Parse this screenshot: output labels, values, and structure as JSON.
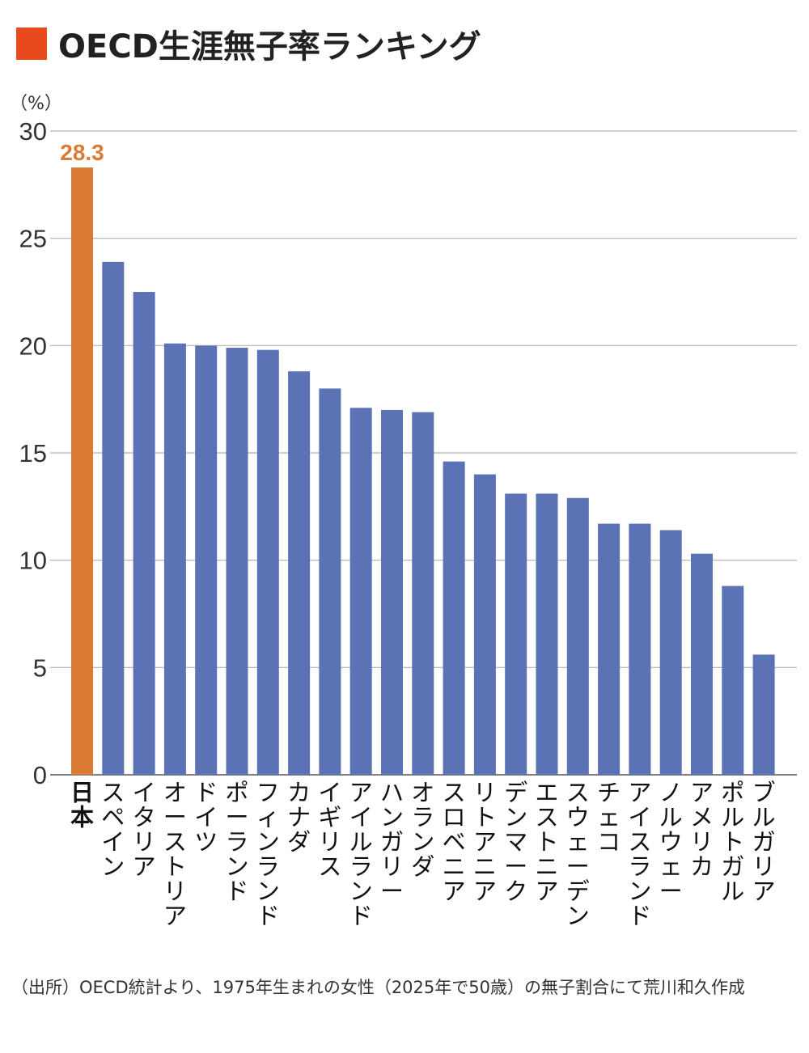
{
  "title": "OECD生涯無子率ランキング",
  "colors": {
    "title_marker": "#e8491d",
    "highlight_bar": "#d97a35",
    "bar": "#5b72b5",
    "grid": "#b0b0b0",
    "highlight_label": "#d97a35"
  },
  "source": "（出所）OECD統計より、1975年生まれの女性（2025年で50歳）の無子割合にて荒川和久作成",
  "chart_data": {
    "type": "bar",
    "unit_label": "（%）",
    "ylim": [
      0,
      30
    ],
    "yticks": [
      0,
      5,
      10,
      15,
      20,
      25,
      30
    ],
    "grid": true,
    "highlight_index": 0,
    "highlight_value_label": "28.3",
    "categories": [
      "日本",
      "スペイン",
      "イタリア",
      "オーストリア",
      "ドイツ",
      "ポーランド",
      "フィンランド",
      "カナダ",
      "イギリス",
      "アイルランド",
      "ハンガリー",
      "オランダ",
      "スロベニア",
      "リトアニア",
      "デンマーク",
      "エストニア",
      "スウェーデン",
      "チェコ",
      "アイスランド",
      "ノルウェー",
      "アメリカ",
      "ポルトガル",
      "ブルガリア"
    ],
    "values": [
      28.3,
      23.9,
      22.5,
      20.1,
      20.0,
      19.9,
      19.8,
      18.8,
      18.0,
      17.1,
      17.0,
      16.9,
      14.6,
      14.0,
      13.1,
      13.1,
      12.9,
      11.7,
      11.7,
      11.4,
      10.3,
      8.8,
      5.6
    ]
  }
}
